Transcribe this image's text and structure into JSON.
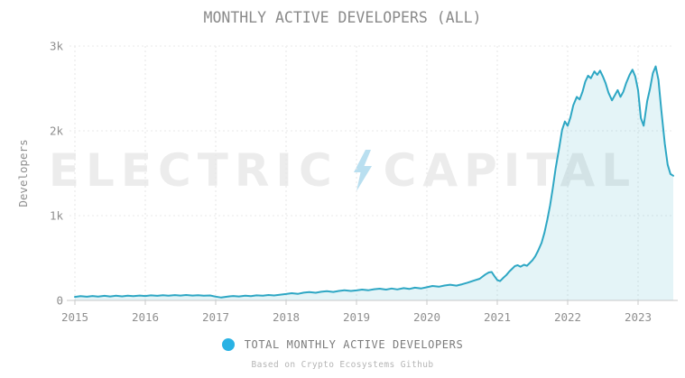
{
  "header": {
    "title": "MONTHLY ACTIVE DEVELOPERS (ALL)"
  },
  "watermark": {
    "word_left": "ELECTRIC",
    "word_right": "CAPITAL",
    "bolt_color": "#b9dff0",
    "text_color": "#ececec"
  },
  "legend": {
    "label": "TOTAL MONTHLY ACTIVE DEVELOPERS",
    "marker_color": "#29b2e4"
  },
  "footer": {
    "source_note": "Based on Crypto Ecosystems Github"
  },
  "colors": {
    "line": "#2ea7c4",
    "area_fill": "rgba(46,167,196,0.13)",
    "grid": "#e6e6e6",
    "axis": "#c8c8c8",
    "tick_text": "#8f8f8f"
  },
  "chart_data": {
    "type": "area",
    "title": "MONTHLY ACTIVE DEVELOPERS (ALL)",
    "xlabel": "",
    "ylabel": "Developers",
    "xlim": [
      2015,
      2023.55
    ],
    "ylim": [
      0,
      3000
    ],
    "grid": true,
    "legend_position": "bottom",
    "x_ticks": [
      2015,
      2016,
      2017,
      2018,
      2019,
      2020,
      2021,
      2022,
      2023
    ],
    "y_ticks": [
      {
        "value": 0,
        "label": "0"
      },
      {
        "value": 1000,
        "label": "1k"
      },
      {
        "value": 2000,
        "label": "2k"
      },
      {
        "value": 3000,
        "label": "3k"
      }
    ],
    "series": [
      {
        "name": "TOTAL MONTHLY ACTIVE DEVELOPERS",
        "color": "#2ea7c4",
        "fill": "rgba(46,167,196,0.13)",
        "points": [
          [
            2015.0,
            42
          ],
          [
            2015.08,
            50
          ],
          [
            2015.17,
            44
          ],
          [
            2015.25,
            52
          ],
          [
            2015.33,
            46
          ],
          [
            2015.42,
            54
          ],
          [
            2015.5,
            47
          ],
          [
            2015.58,
            55
          ],
          [
            2015.67,
            48
          ],
          [
            2015.75,
            56
          ],
          [
            2015.83,
            50
          ],
          [
            2015.92,
            57
          ],
          [
            2016.0,
            52
          ],
          [
            2016.08,
            60
          ],
          [
            2016.17,
            54
          ],
          [
            2016.25,
            62
          ],
          [
            2016.33,
            56
          ],
          [
            2016.42,
            63
          ],
          [
            2016.5,
            57
          ],
          [
            2016.58,
            64
          ],
          [
            2016.67,
            57
          ],
          [
            2016.75,
            62
          ],
          [
            2016.83,
            55
          ],
          [
            2016.92,
            58
          ],
          [
            2017.0,
            45
          ],
          [
            2017.08,
            34
          ],
          [
            2017.17,
            46
          ],
          [
            2017.25,
            52
          ],
          [
            2017.33,
            47
          ],
          [
            2017.42,
            56
          ],
          [
            2017.5,
            50
          ],
          [
            2017.58,
            60
          ],
          [
            2017.67,
            55
          ],
          [
            2017.75,
            64
          ],
          [
            2017.83,
            58
          ],
          [
            2017.92,
            68
          ],
          [
            2018.0,
            75
          ],
          [
            2018.08,
            85
          ],
          [
            2018.17,
            78
          ],
          [
            2018.25,
            92
          ],
          [
            2018.33,
            98
          ],
          [
            2018.42,
            90
          ],
          [
            2018.5,
            102
          ],
          [
            2018.58,
            108
          ],
          [
            2018.67,
            100
          ],
          [
            2018.75,
            112
          ],
          [
            2018.83,
            120
          ],
          [
            2018.92,
            112
          ],
          [
            2019.0,
            118
          ],
          [
            2019.08,
            128
          ],
          [
            2019.17,
            120
          ],
          [
            2019.25,
            132
          ],
          [
            2019.33,
            138
          ],
          [
            2019.42,
            128
          ],
          [
            2019.5,
            140
          ],
          [
            2019.58,
            130
          ],
          [
            2019.67,
            145
          ],
          [
            2019.75,
            135
          ],
          [
            2019.83,
            150
          ],
          [
            2019.92,
            142
          ],
          [
            2020.0,
            155
          ],
          [
            2020.08,
            170
          ],
          [
            2020.17,
            162
          ],
          [
            2020.25,
            176
          ],
          [
            2020.33,
            185
          ],
          [
            2020.42,
            174
          ],
          [
            2020.5,
            190
          ],
          [
            2020.58,
            210
          ],
          [
            2020.67,
            235
          ],
          [
            2020.75,
            255
          ],
          [
            2020.83,
            305
          ],
          [
            2020.88,
            330
          ],
          [
            2020.92,
            335
          ],
          [
            2020.96,
            285
          ],
          [
            2021.0,
            240
          ],
          [
            2021.04,
            228
          ],
          [
            2021.08,
            262
          ],
          [
            2021.13,
            300
          ],
          [
            2021.17,
            340
          ],
          [
            2021.21,
            372
          ],
          [
            2021.25,
            405
          ],
          [
            2021.29,
            415
          ],
          [
            2021.33,
            398
          ],
          [
            2021.38,
            420
          ],
          [
            2021.42,
            408
          ],
          [
            2021.46,
            440
          ],
          [
            2021.5,
            475
          ],
          [
            2021.54,
            520
          ],
          [
            2021.58,
            585
          ],
          [
            2021.63,
            680
          ],
          [
            2021.67,
            800
          ],
          [
            2021.71,
            950
          ],
          [
            2021.75,
            1120
          ],
          [
            2021.79,
            1330
          ],
          [
            2021.83,
            1560
          ],
          [
            2021.88,
            1800
          ],
          [
            2021.92,
            2010
          ],
          [
            2021.96,
            2110
          ],
          [
            2022.0,
            2060
          ],
          [
            2022.04,
            2160
          ],
          [
            2022.08,
            2300
          ],
          [
            2022.13,
            2400
          ],
          [
            2022.17,
            2370
          ],
          [
            2022.21,
            2460
          ],
          [
            2022.25,
            2580
          ],
          [
            2022.29,
            2650
          ],
          [
            2022.33,
            2620
          ],
          [
            2022.38,
            2700
          ],
          [
            2022.42,
            2660
          ],
          [
            2022.46,
            2710
          ],
          [
            2022.5,
            2640
          ],
          [
            2022.54,
            2560
          ],
          [
            2022.58,
            2450
          ],
          [
            2022.63,
            2360
          ],
          [
            2022.67,
            2420
          ],
          [
            2022.71,
            2480
          ],
          [
            2022.75,
            2400
          ],
          [
            2022.79,
            2460
          ],
          [
            2022.83,
            2560
          ],
          [
            2022.88,
            2660
          ],
          [
            2022.92,
            2720
          ],
          [
            2022.96,
            2640
          ],
          [
            2023.0,
            2480
          ],
          [
            2023.04,
            2150
          ],
          [
            2023.08,
            2060
          ],
          [
            2023.13,
            2350
          ],
          [
            2023.17,
            2500
          ],
          [
            2023.21,
            2680
          ],
          [
            2023.25,
            2760
          ],
          [
            2023.29,
            2600
          ],
          [
            2023.33,
            2250
          ],
          [
            2023.38,
            1850
          ],
          [
            2023.42,
            1600
          ],
          [
            2023.46,
            1490
          ],
          [
            2023.5,
            1470
          ]
        ]
      }
    ]
  }
}
